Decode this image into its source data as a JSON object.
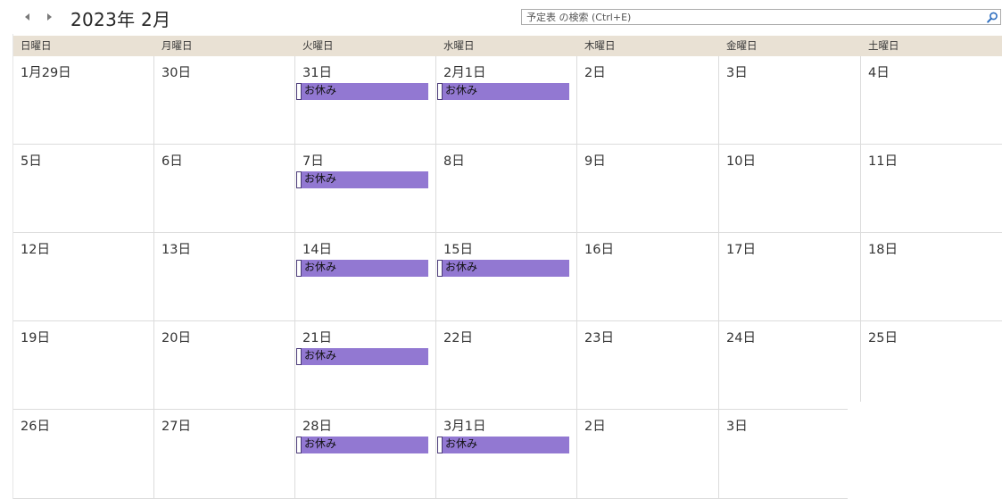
{
  "header": {
    "title": "2023年 2月",
    "prev_icon": "triangle-left-icon",
    "next_icon": "triangle-right-icon"
  },
  "search": {
    "placeholder": "予定表 の検索 (Ctrl+E)",
    "icon": "magnifier-icon"
  },
  "weekdays": [
    "日曜日",
    "月曜日",
    "火曜日",
    "水曜日",
    "木曜日",
    "金曜日",
    "土曜日"
  ],
  "weeks": [
    [
      "1月29日",
      "30日",
      "31日",
      "2月1日",
      "2日",
      "3日",
      "4日"
    ],
    [
      "5日",
      "6日",
      "7日",
      "8日",
      "9日",
      "10日",
      "11日"
    ],
    [
      "12日",
      "13日",
      "14日",
      "15日",
      "16日",
      "17日",
      "18日"
    ],
    [
      "19日",
      "20日",
      "21日",
      "22日",
      "23日",
      "24日",
      "25日"
    ],
    [
      "26日",
      "27日",
      "28日",
      "3月1日",
      "2日",
      "3日",
      ""
    ]
  ],
  "events": [
    {
      "week": 0,
      "day": 2,
      "title": "お休み"
    },
    {
      "week": 0,
      "day": 3,
      "title": "お休み"
    },
    {
      "week": 1,
      "day": 2,
      "title": "お休み"
    },
    {
      "week": 2,
      "day": 2,
      "title": "お休み"
    },
    {
      "week": 2,
      "day": 3,
      "title": "お休み"
    },
    {
      "week": 3,
      "day": 2,
      "title": "お休み"
    },
    {
      "week": 4,
      "day": 2,
      "title": "お休み"
    },
    {
      "week": 4,
      "day": 3,
      "title": "お休み"
    }
  ],
  "colors": {
    "header_bg": "#e9e1d4",
    "event_bg": "#9278d2",
    "event_marker_border": "#4a3a78",
    "grid_line": "#dcdcdc"
  }
}
